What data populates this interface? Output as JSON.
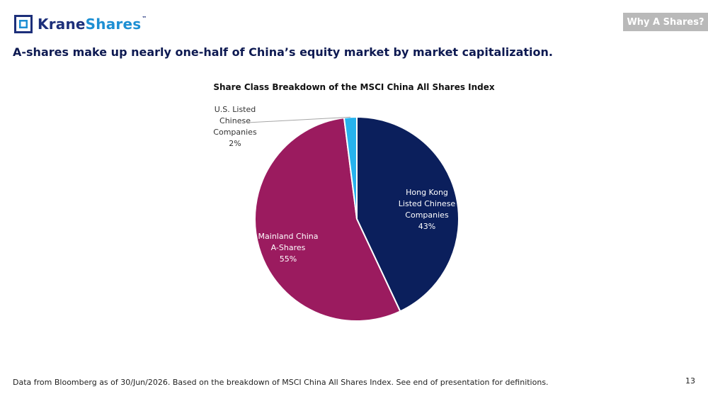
{
  "header": {
    "logo_brand_bold": "Krane",
    "logo_brand_light": "Shares",
    "logo_tm": "™",
    "section_tag": "Why A Shares?"
  },
  "headline": "A-shares make up nearly one-half of China’s equity market by market capitalization.",
  "chart_data": {
    "type": "pie",
    "title": "Share Class Breakdown of the MSCI China All Shares Index",
    "slices": [
      {
        "label": [
          "Hong Kong",
          "Listed Chinese",
          "Companies"
        ],
        "pct_label": "43%",
        "value": 43,
        "color": "#0b1f5c"
      },
      {
        "label": [
          "Mainland China",
          "A-Shares"
        ],
        "pct_label": "55%",
        "value": 55,
        "color": "#9b1b5f"
      },
      {
        "label": [
          "U.S. Listed",
          "Chinese",
          "Companies"
        ],
        "pct_label": "2%",
        "value": 2,
        "color": "#27b3ee"
      }
    ]
  },
  "footer": {
    "note": "Data from Bloomberg as of 30/Jun/2026. Based on the breakdown of MSCI China All Shares Index. See end of presentation for definitions.",
    "page_number": "13"
  }
}
